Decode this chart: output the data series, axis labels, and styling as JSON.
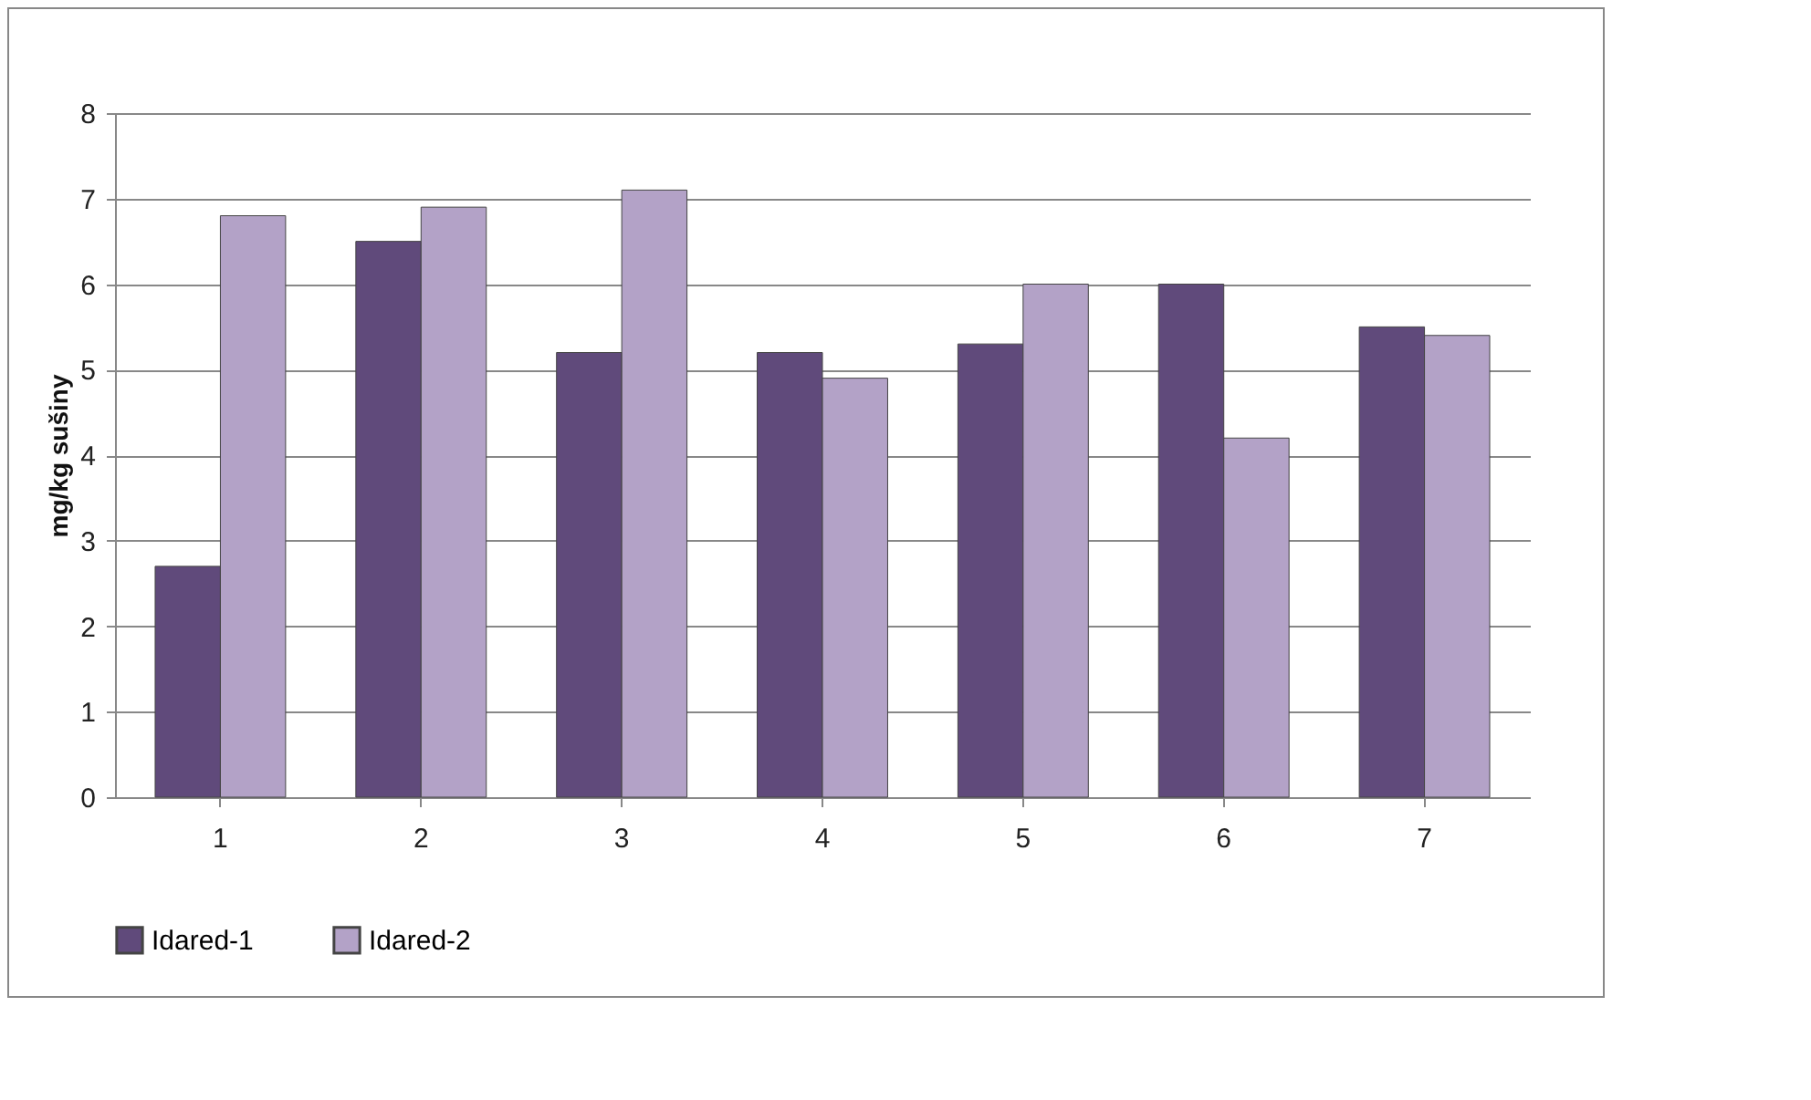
{
  "chart_data": {
    "type": "bar",
    "ylabel": "mg/kg sušiny",
    "categories": [
      "1",
      "2",
      "3",
      "4",
      "5",
      "6",
      "7"
    ],
    "series": [
      {
        "name": "Idared-1",
        "color": "#604a7b",
        "values": [
          2.7,
          6.5,
          5.2,
          5.2,
          5.3,
          6.0,
          5.5
        ]
      },
      {
        "name": "Idared-2",
        "color": "#b3a2c7",
        "values": [
          6.8,
          6.9,
          7.1,
          4.9,
          6.0,
          4.2,
          5.4
        ]
      }
    ],
    "ylim": [
      0,
      8
    ],
    "yticks": [
      0,
      1,
      2,
      3,
      4,
      5,
      6,
      7,
      8
    ],
    "grid": "y",
    "legend": "bottom"
  }
}
